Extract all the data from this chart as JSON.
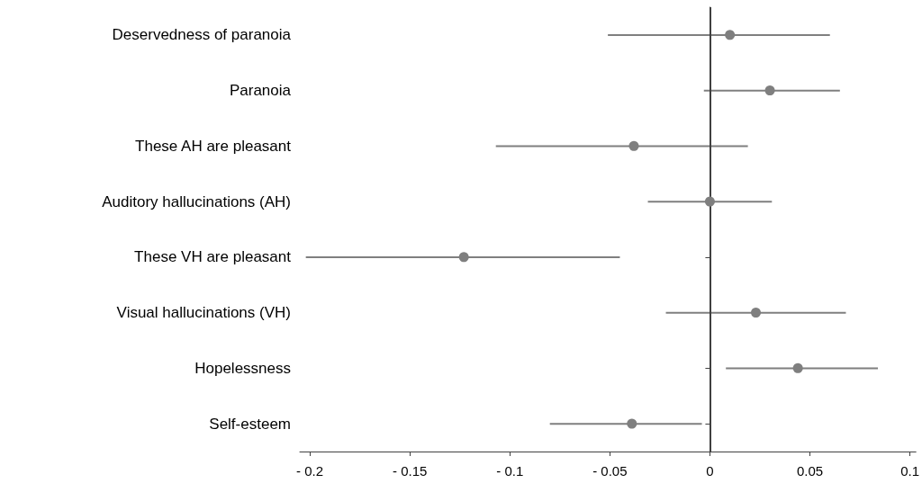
{
  "chart_data": {
    "type": "scatter",
    "orientation": "horizontal",
    "categories": [
      "Deservedness of paranoia",
      "Paranoia",
      "These AH are pleasant",
      "Auditory hallucinations (AH)",
      "These VH are pleasant",
      "Visual hallucinations (VH)",
      "Hopelessness",
      "Self-esteem"
    ],
    "series": [
      {
        "color": "#7f7f7f",
        "values": [
          0.01,
          0.03,
          -0.038,
          0,
          -0.123,
          0.023,
          0.044,
          -0.039
        ],
        "errors": [
          [
            -0.051,
            0.06
          ],
          [
            -0.003,
            0.065
          ],
          [
            -0.107,
            0.019
          ],
          [
            -0.031,
            0.031
          ],
          [
            -0.202,
            -0.045
          ],
          [
            -0.022,
            0.068
          ],
          [
            0.008,
            0.084
          ],
          [
            -0.08,
            -0.004
          ]
        ]
      }
    ],
    "xlim": [
      -0.205,
      0.103
    ],
    "xticks": [
      {
        "value": -0.2,
        "label": "- 0.2"
      },
      {
        "value": -0.15,
        "label": "- 0.15"
      },
      {
        "value": -0.1,
        "label": "- 0.1"
      },
      {
        "value": -0.05,
        "label": "- 0.05"
      },
      0,
      0.05,
      0.1
    ],
    "ref_lines": [
      {
        "axis": "x",
        "value": 0,
        "color": "#404040"
      }
    ],
    "grid": false,
    "marker": "circle"
  }
}
